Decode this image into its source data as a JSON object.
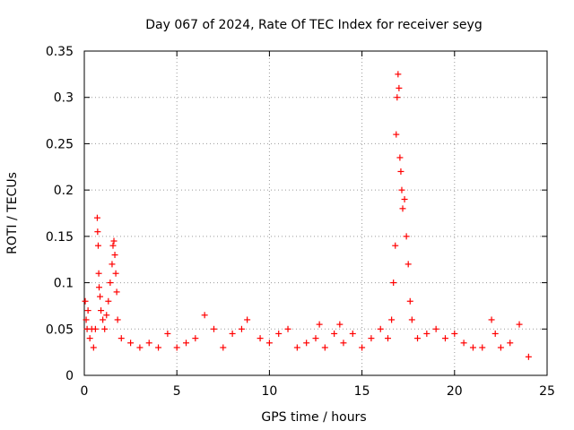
{
  "chart_data": {
    "type": "scatter",
    "title": "Day 067 of 2024, Rate Of TEC Index for receiver seyg",
    "xlabel": "GPS time / hours",
    "ylabel": "ROTI / TECUs",
    "xlim": [
      0,
      25
    ],
    "ylim": [
      0,
      0.35
    ],
    "x_ticks": [
      "0",
      "5",
      "10",
      "15",
      "20",
      "25"
    ],
    "y_ticks": [
      "0",
      "0.05",
      "0.1",
      "0.15",
      "0.2",
      "0.25",
      "0.3",
      "0.35"
    ],
    "x_tick_values": [
      0,
      5,
      10,
      15,
      20,
      25
    ],
    "y_tick_values": [
      0,
      0.05,
      0.1,
      0.15,
      0.2,
      0.25,
      0.3,
      0.35
    ],
    "grid": true,
    "marker": "+",
    "color": "#ff0000",
    "series": [
      {
        "points": [
          [
            0.05,
            0.08
          ],
          [
            0.1,
            0.06
          ],
          [
            0.15,
            0.05
          ],
          [
            0.2,
            0.07
          ],
          [
            0.3,
            0.04
          ],
          [
            0.4,
            0.05
          ],
          [
            0.5,
            0.03
          ],
          [
            0.6,
            0.05
          ],
          [
            0.7,
            0.17
          ],
          [
            0.72,
            0.155
          ],
          [
            0.75,
            0.14
          ],
          [
            0.78,
            0.11
          ],
          [
            0.8,
            0.095
          ],
          [
            0.85,
            0.085
          ],
          [
            0.9,
            0.07
          ],
          [
            1.0,
            0.06
          ],
          [
            1.1,
            0.05
          ],
          [
            1.2,
            0.065
          ],
          [
            1.3,
            0.08
          ],
          [
            1.4,
            0.1
          ],
          [
            1.5,
            0.12
          ],
          [
            1.55,
            0.14
          ],
          [
            1.6,
            0.145
          ],
          [
            1.65,
            0.13
          ],
          [
            1.7,
            0.11
          ],
          [
            1.75,
            0.09
          ],
          [
            1.8,
            0.06
          ],
          [
            2.0,
            0.04
          ],
          [
            2.5,
            0.035
          ],
          [
            3.0,
            0.03
          ],
          [
            3.5,
            0.035
          ],
          [
            4.0,
            0.03
          ],
          [
            4.5,
            0.045
          ],
          [
            5.0,
            0.03
          ],
          [
            5.5,
            0.035
          ],
          [
            6.0,
            0.04
          ],
          [
            6.5,
            0.065
          ],
          [
            7.0,
            0.05
          ],
          [
            7.5,
            0.03
          ],
          [
            8.0,
            0.045
          ],
          [
            8.5,
            0.05
          ],
          [
            8.8,
            0.06
          ],
          [
            9.5,
            0.04
          ],
          [
            10.0,
            0.035
          ],
          [
            10.5,
            0.045
          ],
          [
            11.0,
            0.05
          ],
          [
            11.5,
            0.03
          ],
          [
            12.0,
            0.035
          ],
          [
            12.5,
            0.04
          ],
          [
            12.7,
            0.055
          ],
          [
            13.0,
            0.03
          ],
          [
            13.5,
            0.045
          ],
          [
            13.8,
            0.055
          ],
          [
            14.0,
            0.035
          ],
          [
            14.5,
            0.045
          ],
          [
            15.0,
            0.03
          ],
          [
            15.5,
            0.04
          ],
          [
            16.0,
            0.05
          ],
          [
            16.4,
            0.04
          ],
          [
            16.6,
            0.06
          ],
          [
            16.7,
            0.1
          ],
          [
            16.8,
            0.14
          ],
          [
            16.85,
            0.26
          ],
          [
            16.9,
            0.3
          ],
          [
            16.95,
            0.325
          ],
          [
            17.0,
            0.31
          ],
          [
            17.05,
            0.235
          ],
          [
            17.1,
            0.22
          ],
          [
            17.15,
            0.2
          ],
          [
            17.2,
            0.18
          ],
          [
            17.3,
            0.19
          ],
          [
            17.4,
            0.15
          ],
          [
            17.5,
            0.12
          ],
          [
            17.6,
            0.08
          ],
          [
            17.7,
            0.06
          ],
          [
            18.0,
            0.04
          ],
          [
            18.5,
            0.045
          ],
          [
            19.0,
            0.05
          ],
          [
            19.5,
            0.04
          ],
          [
            20.0,
            0.045
          ],
          [
            20.5,
            0.035
          ],
          [
            21.0,
            0.03
          ],
          [
            21.5,
            0.03
          ],
          [
            22.0,
            0.06
          ],
          [
            22.2,
            0.045
          ],
          [
            22.5,
            0.03
          ],
          [
            23.0,
            0.035
          ],
          [
            23.5,
            0.055
          ],
          [
            24.0,
            0.02
          ]
        ]
      }
    ]
  }
}
